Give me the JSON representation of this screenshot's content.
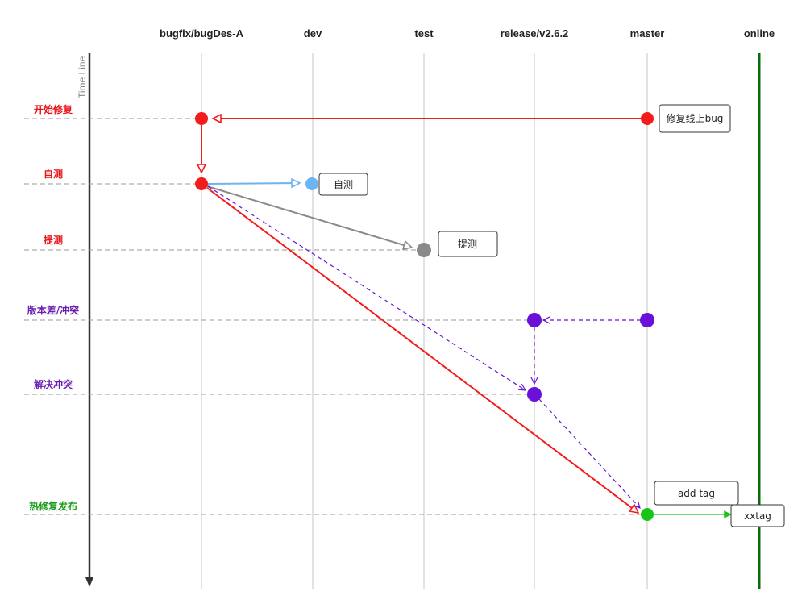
{
  "branches": [
    "bugfix/bugDes-A",
    "dev",
    "test",
    "release/v2.6.2",
    "master",
    "online"
  ],
  "axis_label": "Time Line",
  "steps": [
    {
      "label": "开始修复",
      "color": "#e8141b"
    },
    {
      "label": "自测",
      "color": "#e8141b"
    },
    {
      "label": "提测",
      "color": "#e8141b"
    },
    {
      "label": "版本差/冲突",
      "color": "#6a1fb0"
    },
    {
      "label": "解决冲突",
      "color": "#6a1fb0"
    },
    {
      "label": "热修复发布",
      "color": "#1a9a1a"
    }
  ],
  "notes": {
    "fix_online_bug": "修复线上bug",
    "self_test": "自测",
    "submit_test": "提测",
    "add_tag": "add tag",
    "xxtag": "xxtag"
  },
  "colors": {
    "red": "#f21c1c",
    "blue": "#6cb4f2",
    "gray": "#8a8a8a",
    "purple": "#6a10d8",
    "green": "#19c419",
    "online_line": "#0a6b0a"
  }
}
